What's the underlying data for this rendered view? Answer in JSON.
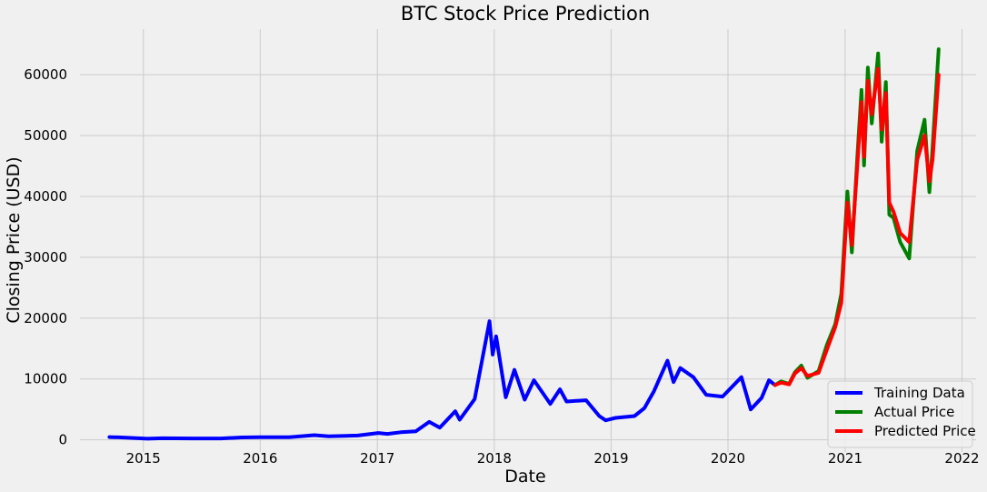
{
  "chart_data": {
    "type": "line",
    "title": "BTC Stock Price Prediction",
    "xlabel": "Date",
    "ylabel": "Closing Price (USD)",
    "x_ticks": [
      "2015",
      "2016",
      "2017",
      "2018",
      "2019",
      "2020",
      "2021",
      "2022"
    ],
    "y_ticks": [
      "0",
      "10000",
      "20000",
      "30000",
      "40000",
      "50000",
      "60000"
    ],
    "xlim": [
      "2014-06-17",
      "2022-02-14"
    ],
    "ylim": [
      -2000,
      67500
    ],
    "grid": true,
    "legend_position": "bottom-right",
    "series": [
      {
        "name": "Training Data",
        "color": "#0000ff",
        "points": [
          [
            "2014-09-17",
            457
          ],
          [
            "2014-11-01",
            380
          ],
          [
            "2015-01-14",
            180
          ],
          [
            "2015-03-01",
            260
          ],
          [
            "2015-06-01",
            230
          ],
          [
            "2015-09-01",
            230
          ],
          [
            "2015-11-05",
            390
          ],
          [
            "2016-01-01",
            430
          ],
          [
            "2016-04-01",
            420
          ],
          [
            "2016-06-18",
            760
          ],
          [
            "2016-08-01",
            580
          ],
          [
            "2016-11-01",
            700
          ],
          [
            "2017-01-04",
            1130
          ],
          [
            "2017-02-01",
            970
          ],
          [
            "2017-03-15",
            1250
          ],
          [
            "2017-05-01",
            1400
          ],
          [
            "2017-06-12",
            2950
          ],
          [
            "2017-07-15",
            2000
          ],
          [
            "2017-09-01",
            4700
          ],
          [
            "2017-09-15",
            3300
          ],
          [
            "2017-11-01",
            6700
          ],
          [
            "2017-12-17",
            19500
          ],
          [
            "2017-12-27",
            14000
          ],
          [
            "2018-01-07",
            17000
          ],
          [
            "2018-02-06",
            7000
          ],
          [
            "2018-03-05",
            11500
          ],
          [
            "2018-04-06",
            6600
          ],
          [
            "2018-05-05",
            9800
          ],
          [
            "2018-06-25",
            5900
          ],
          [
            "2018-07-25",
            8300
          ],
          [
            "2018-08-15",
            6300
          ],
          [
            "2018-10-15",
            6500
          ],
          [
            "2018-11-25",
            3900
          ],
          [
            "2018-12-15",
            3200
          ],
          [
            "2019-01-15",
            3600
          ],
          [
            "2019-03-15",
            3900
          ],
          [
            "2019-04-15",
            5200
          ],
          [
            "2019-05-15",
            8000
          ],
          [
            "2019-06-26",
            13000
          ],
          [
            "2019-07-15",
            9500
          ],
          [
            "2019-08-05",
            11800
          ],
          [
            "2019-09-15",
            10300
          ],
          [
            "2019-10-25",
            7400
          ],
          [
            "2019-12-15",
            7100
          ],
          [
            "2020-02-12",
            10300
          ],
          [
            "2020-03-12",
            5000
          ],
          [
            "2020-04-15",
            6900
          ],
          [
            "2020-05-08",
            9800
          ],
          [
            "2020-05-27",
            9000
          ]
        ]
      },
      {
        "name": "Actual Price",
        "color": "#008000",
        "points": [
          [
            "2020-05-27",
            9000
          ],
          [
            "2020-06-15",
            9600
          ],
          [
            "2020-07-10",
            9200
          ],
          [
            "2020-07-28",
            11100
          ],
          [
            "2020-08-17",
            12200
          ],
          [
            "2020-09-05",
            10200
          ],
          [
            "2020-10-10",
            11300
          ],
          [
            "2020-11-05",
            15600
          ],
          [
            "2020-12-01",
            19000
          ],
          [
            "2020-12-20",
            24000
          ],
          [
            "2021-01-08",
            40800
          ],
          [
            "2021-01-22",
            30800
          ],
          [
            "2021-02-08",
            46500
          ],
          [
            "2021-02-21",
            57500
          ],
          [
            "2021-03-01",
            45100
          ],
          [
            "2021-03-13",
            61200
          ],
          [
            "2021-03-25",
            52000
          ],
          [
            "2021-04-14",
            63500
          ],
          [
            "2021-04-25",
            49000
          ],
          [
            "2021-05-08",
            58800
          ],
          [
            "2021-05-19",
            37000
          ],
          [
            "2021-06-01",
            36500
          ],
          [
            "2021-06-22",
            32500
          ],
          [
            "2021-07-20",
            29800
          ],
          [
            "2021-08-14",
            47500
          ],
          [
            "2021-09-06",
            52600
          ],
          [
            "2021-09-21",
            40700
          ],
          [
            "2021-10-01",
            48000
          ],
          [
            "2021-10-20",
            64200
          ]
        ]
      },
      {
        "name": "Predicted Price",
        "color": "#ff0000",
        "points": [
          [
            "2020-05-27",
            9000
          ],
          [
            "2020-06-15",
            9400
          ],
          [
            "2020-07-10",
            9100
          ],
          [
            "2020-07-28",
            10900
          ],
          [
            "2020-08-17",
            11800
          ],
          [
            "2020-09-05",
            10500
          ],
          [
            "2020-10-10",
            11000
          ],
          [
            "2020-11-05",
            14800
          ],
          [
            "2020-12-01",
            18500
          ],
          [
            "2020-12-20",
            22500
          ],
          [
            "2021-01-08",
            39000
          ],
          [
            "2021-01-22",
            32000
          ],
          [
            "2021-02-08",
            45000
          ],
          [
            "2021-02-21",
            55500
          ],
          [
            "2021-03-01",
            46500
          ],
          [
            "2021-03-13",
            59000
          ],
          [
            "2021-03-25",
            53500
          ],
          [
            "2021-04-14",
            61000
          ],
          [
            "2021-04-25",
            51000
          ],
          [
            "2021-05-08",
            57000
          ],
          [
            "2021-05-19",
            39000
          ],
          [
            "2021-06-01",
            37500
          ],
          [
            "2021-06-22",
            34000
          ],
          [
            "2021-07-20",
            32500
          ],
          [
            "2021-08-14",
            46000
          ],
          [
            "2021-09-06",
            50000
          ],
          [
            "2021-09-21",
            42500
          ],
          [
            "2021-10-01",
            46000
          ],
          [
            "2021-10-20",
            60000
          ]
        ]
      }
    ]
  }
}
